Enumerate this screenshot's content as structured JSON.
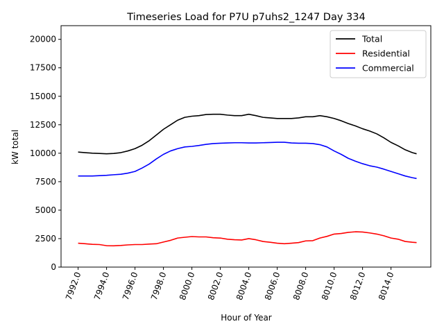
{
  "chart_data": {
    "type": "line",
    "title": "Timeseries Load for P7U p7uhs2_1247  Day 334",
    "xlabel": "Hour of Year",
    "ylabel": "kW total",
    "xlim": [
      7990.8,
      8016.8
    ],
    "ylim": [
      0,
      21200
    ],
    "x_ticks": [
      7992,
      7994,
      7996,
      7998,
      8000,
      8002,
      8004,
      8006,
      8008,
      8010,
      8012,
      8014
    ],
    "x_tick_labels": [
      "7992.0",
      "7994.0",
      "7996.0",
      "7998.0",
      "8000.0",
      "8002.0",
      "8004.0",
      "8006.0",
      "8008.0",
      "8010.0",
      "8012.0",
      "8014.0"
    ],
    "y_ticks": [
      0,
      2500,
      5000,
      7500,
      10000,
      12500,
      15000,
      17500,
      20000
    ],
    "y_tick_labels": [
      "0",
      "2500",
      "5000",
      "7500",
      "10000",
      "12500",
      "15000",
      "17500",
      "20000"
    ],
    "grid": false,
    "legend_position": "top-right",
    "series": [
      {
        "name": "Total",
        "color": "#000000",
        "points": [
          [
            7992.0,
            10100
          ],
          [
            7992.5,
            10050
          ],
          [
            7993.0,
            10000
          ],
          [
            7993.5,
            9980
          ],
          [
            7994.0,
            9950
          ],
          [
            7994.5,
            9980
          ],
          [
            7995.0,
            10050
          ],
          [
            7995.5,
            10200
          ],
          [
            7996.0,
            10400
          ],
          [
            7996.5,
            10700
          ],
          [
            7997.0,
            11100
          ],
          [
            7997.5,
            11600
          ],
          [
            7998.0,
            12100
          ],
          [
            7998.5,
            12500
          ],
          [
            7999.0,
            12900
          ],
          [
            7999.5,
            13150
          ],
          [
            8000.0,
            13250
          ],
          [
            8000.5,
            13300
          ],
          [
            8001.0,
            13400
          ],
          [
            8001.5,
            13420
          ],
          [
            8002.0,
            13420
          ],
          [
            8002.5,
            13350
          ],
          [
            8003.0,
            13300
          ],
          [
            8003.5,
            13300
          ],
          [
            8004.0,
            13420
          ],
          [
            8004.5,
            13300
          ],
          [
            8005.0,
            13150
          ],
          [
            8005.5,
            13100
          ],
          [
            8006.0,
            13050
          ],
          [
            8006.5,
            13050
          ],
          [
            8007.0,
            13050
          ],
          [
            8007.5,
            13100
          ],
          [
            8008.0,
            13200
          ],
          [
            8008.5,
            13200
          ],
          [
            8009.0,
            13300
          ],
          [
            8009.5,
            13200
          ],
          [
            8010.0,
            13050
          ],
          [
            8010.5,
            12850
          ],
          [
            8011.0,
            12600
          ],
          [
            8011.5,
            12400
          ],
          [
            8012.0,
            12150
          ],
          [
            8012.5,
            11950
          ],
          [
            8013.0,
            11700
          ],
          [
            8013.5,
            11350
          ],
          [
            8014.0,
            10950
          ],
          [
            8014.5,
            10650
          ],
          [
            8015.0,
            10300
          ],
          [
            8015.5,
            10050
          ],
          [
            8015.8,
            9950
          ]
        ]
      },
      {
        "name": "Residential",
        "color": "#ff0000",
        "points": [
          [
            7992.0,
            2100
          ],
          [
            7992.5,
            2050
          ],
          [
            7993.0,
            2000
          ],
          [
            7993.5,
            1980
          ],
          [
            7994.0,
            1880
          ],
          [
            7994.5,
            1870
          ],
          [
            7995.0,
            1900
          ],
          [
            7995.5,
            1950
          ],
          [
            7996.0,
            1980
          ],
          [
            7996.5,
            1980
          ],
          [
            7997.0,
            2020
          ],
          [
            7997.5,
            2050
          ],
          [
            7998.0,
            2200
          ],
          [
            7998.5,
            2350
          ],
          [
            7999.0,
            2550
          ],
          [
            7999.5,
            2620
          ],
          [
            8000.0,
            2680
          ],
          [
            8000.5,
            2650
          ],
          [
            8001.0,
            2650
          ],
          [
            8001.5,
            2580
          ],
          [
            8002.0,
            2550
          ],
          [
            8002.5,
            2450
          ],
          [
            8003.0,
            2400
          ],
          [
            8003.5,
            2380
          ],
          [
            8004.0,
            2500
          ],
          [
            8004.5,
            2400
          ],
          [
            8005.0,
            2250
          ],
          [
            8005.5,
            2180
          ],
          [
            8006.0,
            2100
          ],
          [
            8006.5,
            2050
          ],
          [
            8007.0,
            2100
          ],
          [
            8007.5,
            2150
          ],
          [
            8008.0,
            2300
          ],
          [
            8008.5,
            2320
          ],
          [
            8009.0,
            2550
          ],
          [
            8009.5,
            2700
          ],
          [
            8010.0,
            2900
          ],
          [
            8010.5,
            2950
          ],
          [
            8011.0,
            3050
          ],
          [
            8011.5,
            3100
          ],
          [
            8012.0,
            3080
          ],
          [
            8012.5,
            3000
          ],
          [
            8013.0,
            2900
          ],
          [
            8013.5,
            2750
          ],
          [
            8014.0,
            2550
          ],
          [
            8014.5,
            2450
          ],
          [
            8015.0,
            2250
          ],
          [
            8015.5,
            2180
          ],
          [
            8015.8,
            2150
          ]
        ]
      },
      {
        "name": "Commercial",
        "color": "#0000ff",
        "points": [
          [
            7992.0,
            8000
          ],
          [
            7992.5,
            8000
          ],
          [
            7993.0,
            8000
          ],
          [
            7993.5,
            8030
          ],
          [
            7994.0,
            8060
          ],
          [
            7994.5,
            8110
          ],
          [
            7995.0,
            8150
          ],
          [
            7995.5,
            8250
          ],
          [
            7996.0,
            8400
          ],
          [
            7996.5,
            8700
          ],
          [
            7997.0,
            9050
          ],
          [
            7997.5,
            9500
          ],
          [
            7998.0,
            9900
          ],
          [
            7998.5,
            10200
          ],
          [
            7999.0,
            10400
          ],
          [
            7999.5,
            10550
          ],
          [
            8000.0,
            10600
          ],
          [
            8000.5,
            10680
          ],
          [
            8001.0,
            10780
          ],
          [
            8001.5,
            10850
          ],
          [
            8002.0,
            10880
          ],
          [
            8002.5,
            10900
          ],
          [
            8003.0,
            10920
          ],
          [
            8003.5,
            10920
          ],
          [
            8004.0,
            10900
          ],
          [
            8004.5,
            10900
          ],
          [
            8005.0,
            10920
          ],
          [
            8005.5,
            10940
          ],
          [
            8006.0,
            10960
          ],
          [
            8006.5,
            10960
          ],
          [
            8007.0,
            10900
          ],
          [
            8007.5,
            10880
          ],
          [
            8008.0,
            10880
          ],
          [
            8008.5,
            10850
          ],
          [
            8009.0,
            10750
          ],
          [
            8009.5,
            10550
          ],
          [
            8010.0,
            10200
          ],
          [
            8010.5,
            9900
          ],
          [
            8011.0,
            9550
          ],
          [
            8011.5,
            9300
          ],
          [
            8012.0,
            9080
          ],
          [
            8012.5,
            8900
          ],
          [
            8013.0,
            8780
          ],
          [
            8013.5,
            8600
          ],
          [
            8014.0,
            8400
          ],
          [
            8014.5,
            8200
          ],
          [
            8015.0,
            8000
          ],
          [
            8015.5,
            7850
          ],
          [
            8015.8,
            7780
          ]
        ]
      }
    ]
  }
}
